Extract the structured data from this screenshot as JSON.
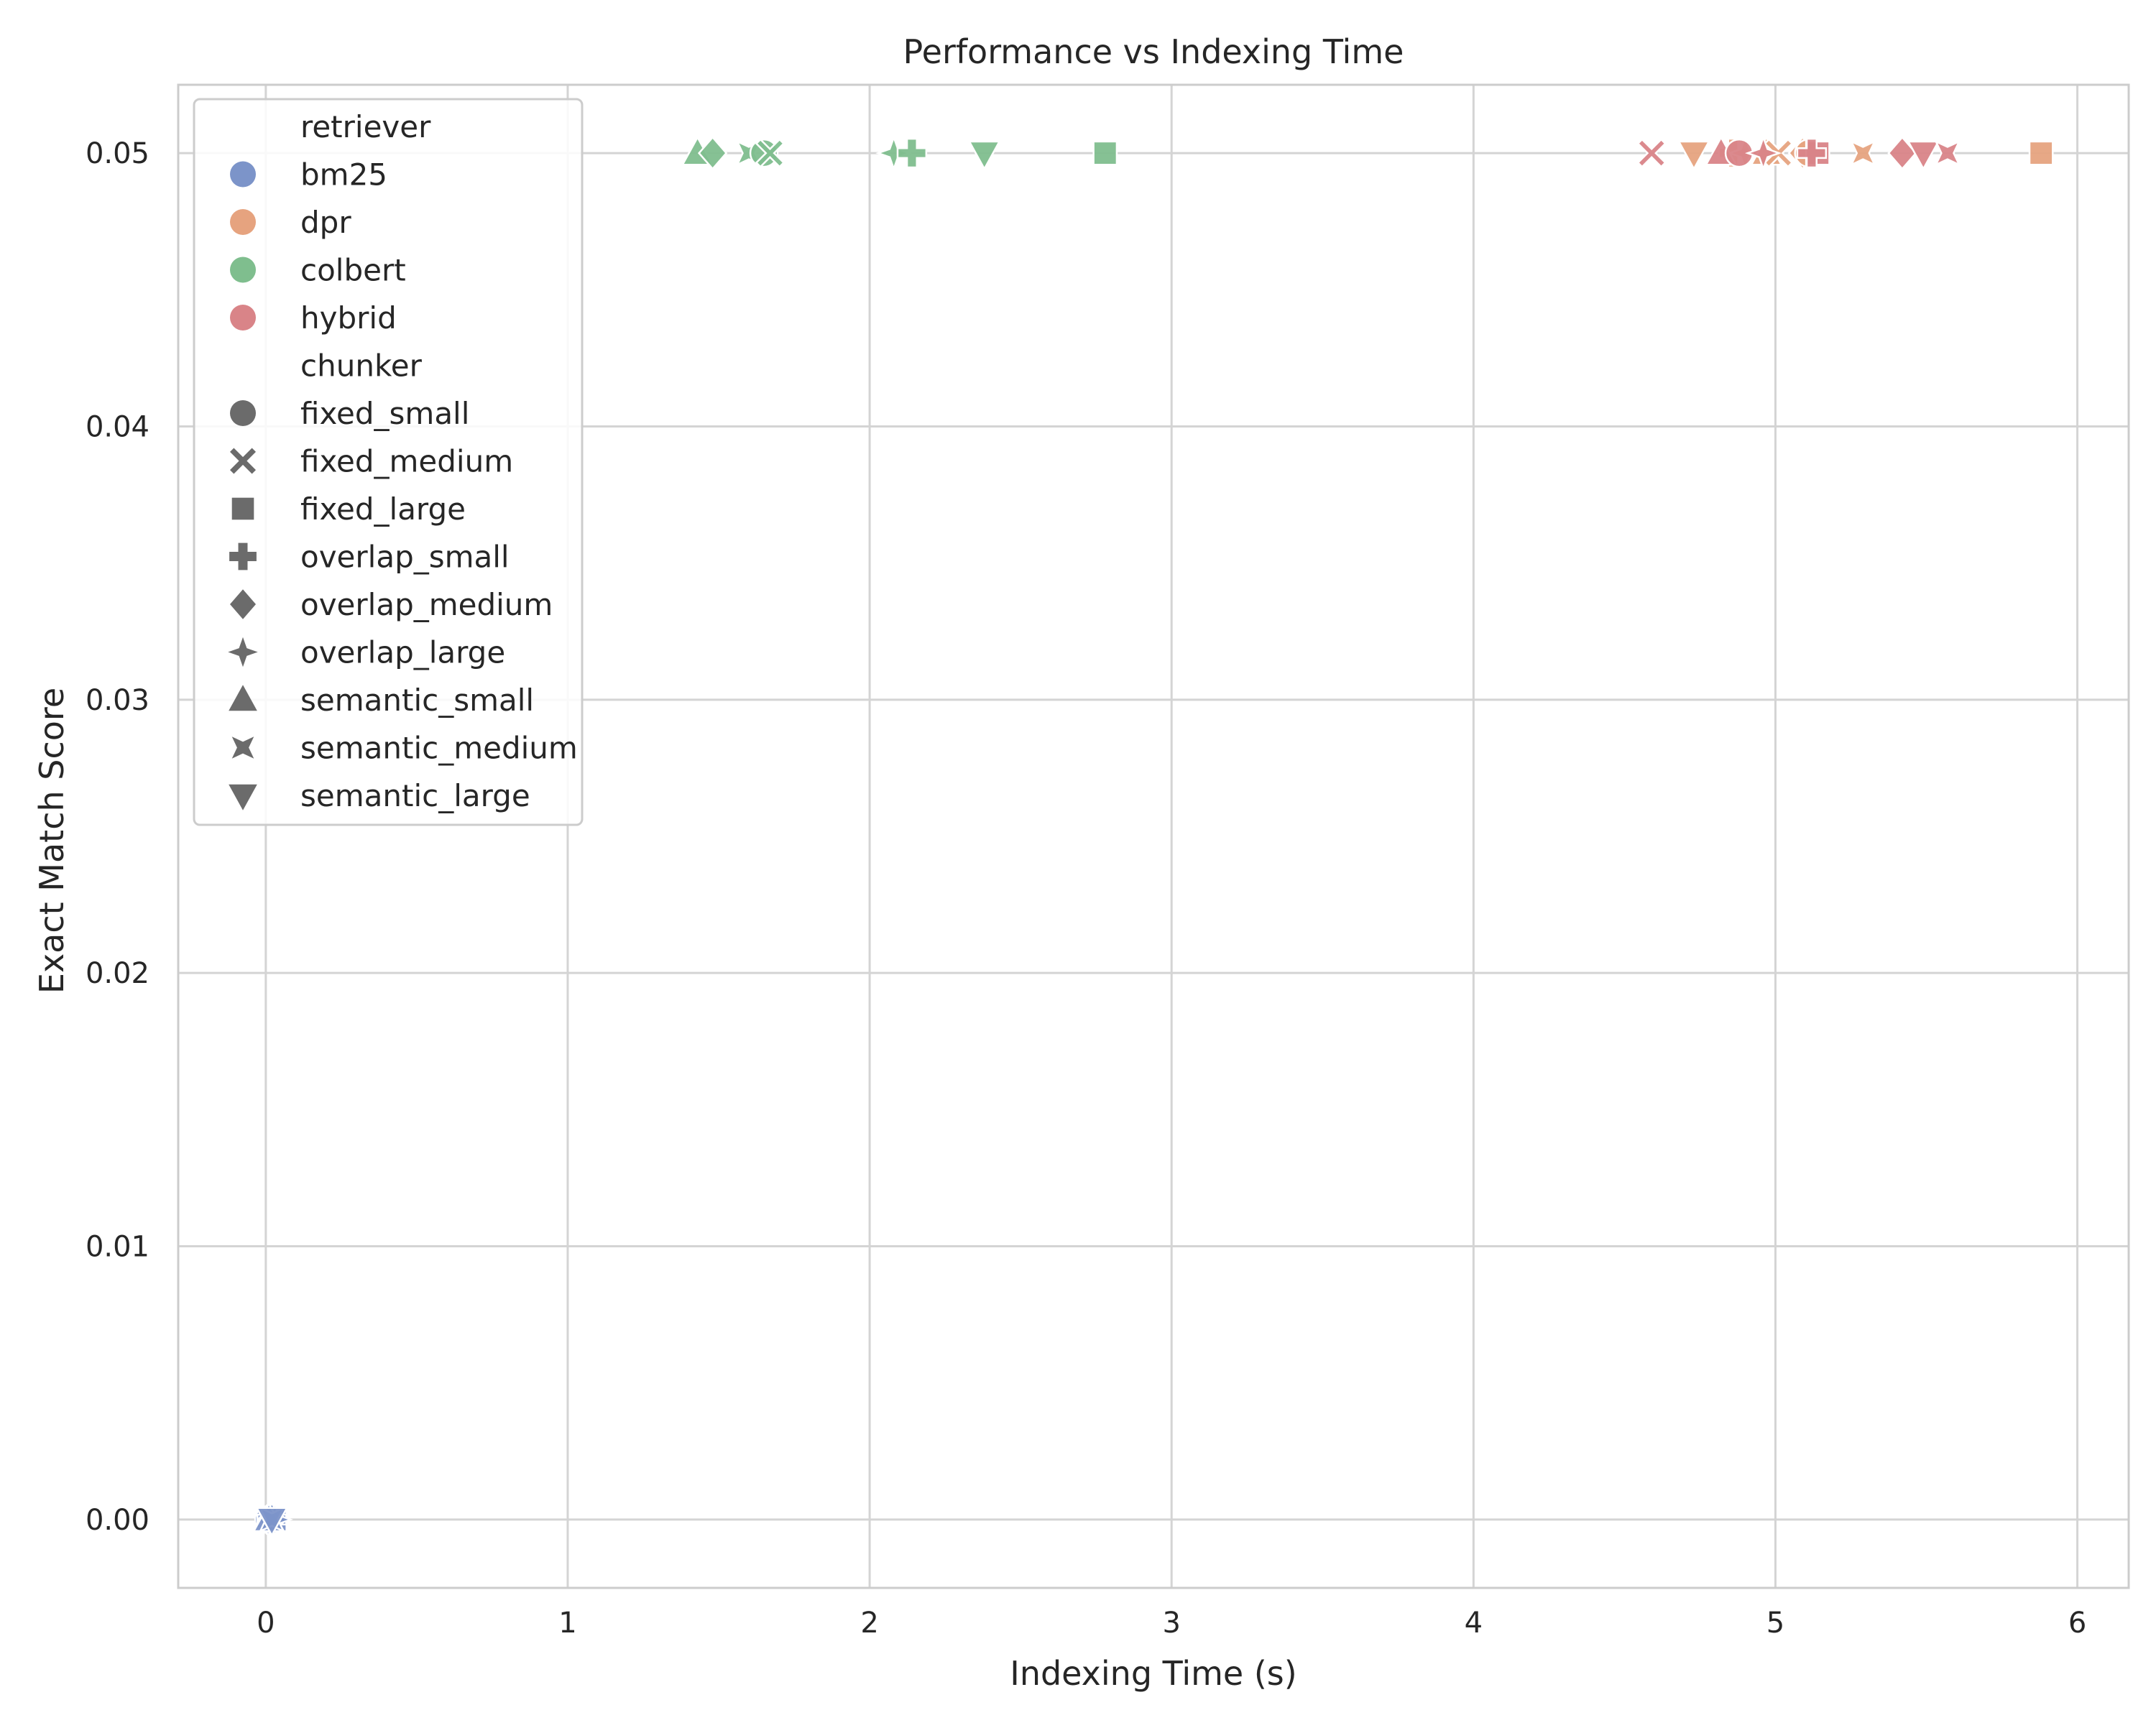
{
  "chart_data": {
    "type": "scatter",
    "title": "Performance vs Indexing Time",
    "xlabel": "Indexing Time (s)",
    "ylabel": "Exact Match Score",
    "xlim": [
      -0.29,
      6.17
    ],
    "ylim": [
      -0.0025,
      0.0525
    ],
    "xticks": [
      0,
      1,
      2,
      3,
      4,
      5,
      6
    ],
    "xtick_labels": [
      "0",
      "1",
      "2",
      "3",
      "4",
      "5",
      "6"
    ],
    "yticks": [
      0.0,
      0.01,
      0.02,
      0.03,
      0.04,
      0.05
    ],
    "ytick_labels": [
      "0.00",
      "0.01",
      "0.02",
      "0.03",
      "0.04",
      "0.05"
    ],
    "grid": true,
    "legend": {
      "placement": "top-left",
      "hue_title": "retriever",
      "style_title": "chunker"
    },
    "series": [
      {
        "name": "bm25",
        "color": "#7c94c9"
      },
      {
        "name": "dpr",
        "color": "#e6a37f"
      },
      {
        "name": "colbert",
        "color": "#7fbe8e"
      },
      {
        "name": "hybrid",
        "color": "#d98488"
      }
    ],
    "markers": [
      {
        "name": "fixed_small",
        "shape": "circle"
      },
      {
        "name": "fixed_medium",
        "shape": "x"
      },
      {
        "name": "fixed_large",
        "shape": "square"
      },
      {
        "name": "overlap_small",
        "shape": "plus"
      },
      {
        "name": "overlap_medium",
        "shape": "diamond"
      },
      {
        "name": "overlap_large",
        "shape": "star4"
      },
      {
        "name": "semantic_small",
        "shape": "triangle-up"
      },
      {
        "name": "semantic_medium",
        "shape": "pinched-square"
      },
      {
        "name": "semantic_large",
        "shape": "triangle-down"
      }
    ],
    "points": [
      {
        "retriever": "bm25",
        "chunker": "fixed_small",
        "x": 0.01,
        "y": 0.0
      },
      {
        "retriever": "bm25",
        "chunker": "fixed_medium",
        "x": 0.02,
        "y": 0.0
      },
      {
        "retriever": "bm25",
        "chunker": "fixed_large",
        "x": 0.03,
        "y": 0.0
      },
      {
        "retriever": "bm25",
        "chunker": "overlap_small",
        "x": 0.02,
        "y": 0.0
      },
      {
        "retriever": "bm25",
        "chunker": "overlap_medium",
        "x": 0.02,
        "y": 0.0
      },
      {
        "retriever": "bm25",
        "chunker": "overlap_large",
        "x": 0.03,
        "y": 0.0
      },
      {
        "retriever": "bm25",
        "chunker": "semantic_small",
        "x": 0.01,
        "y": 0.0
      },
      {
        "retriever": "bm25",
        "chunker": "semantic_medium",
        "x": 0.02,
        "y": 0.0
      },
      {
        "retriever": "bm25",
        "chunker": "semantic_large",
        "x": 0.02,
        "y": 0.0
      },
      {
        "retriever": "colbert",
        "chunker": "semantic_small",
        "x": 1.43,
        "y": 0.05
      },
      {
        "retriever": "colbert",
        "chunker": "overlap_medium",
        "x": 1.48,
        "y": 0.05
      },
      {
        "retriever": "colbert",
        "chunker": "semantic_medium",
        "x": 1.6,
        "y": 0.05
      },
      {
        "retriever": "colbert",
        "chunker": "fixed_small",
        "x": 1.65,
        "y": 0.05
      },
      {
        "retriever": "colbert",
        "chunker": "fixed_medium",
        "x": 1.67,
        "y": 0.05
      },
      {
        "retriever": "colbert",
        "chunker": "overlap_large",
        "x": 2.08,
        "y": 0.05
      },
      {
        "retriever": "colbert",
        "chunker": "overlap_small",
        "x": 2.14,
        "y": 0.05
      },
      {
        "retriever": "colbert",
        "chunker": "semantic_large",
        "x": 2.38,
        "y": 0.05
      },
      {
        "retriever": "colbert",
        "chunker": "fixed_large",
        "x": 2.78,
        "y": 0.05
      },
      {
        "retriever": "dpr",
        "chunker": "semantic_large",
        "x": 4.73,
        "y": 0.05
      },
      {
        "retriever": "dpr",
        "chunker": "overlap_small",
        "x": 4.86,
        "y": 0.05
      },
      {
        "retriever": "dpr",
        "chunker": "overlap_large",
        "x": 4.9,
        "y": 0.05
      },
      {
        "retriever": "dpr",
        "chunker": "semantic_small",
        "x": 4.97,
        "y": 0.05
      },
      {
        "retriever": "dpr",
        "chunker": "fixed_medium",
        "x": 5.01,
        "y": 0.05
      },
      {
        "retriever": "dpr",
        "chunker": "overlap_medium",
        "x": 5.09,
        "y": 0.05
      },
      {
        "retriever": "dpr",
        "chunker": "fixed_small",
        "x": 5.11,
        "y": 0.05
      },
      {
        "retriever": "dpr",
        "chunker": "semantic_medium",
        "x": 5.29,
        "y": 0.05
      },
      {
        "retriever": "dpr",
        "chunker": "fixed_large",
        "x": 5.88,
        "y": 0.05
      },
      {
        "retriever": "hybrid",
        "chunker": "fixed_medium",
        "x": 4.59,
        "y": 0.05
      },
      {
        "retriever": "hybrid",
        "chunker": "semantic_small",
        "x": 4.82,
        "y": 0.05
      },
      {
        "retriever": "hybrid",
        "chunker": "fixed_small",
        "x": 4.88,
        "y": 0.05
      },
      {
        "retriever": "hybrid",
        "chunker": "overlap_large",
        "x": 4.96,
        "y": 0.05
      },
      {
        "retriever": "hybrid",
        "chunker": "fixed_large",
        "x": 5.14,
        "y": 0.05
      },
      {
        "retriever": "hybrid",
        "chunker": "overlap_small",
        "x": 5.12,
        "y": 0.05
      },
      {
        "retriever": "hybrid",
        "chunker": "overlap_medium",
        "x": 5.42,
        "y": 0.05
      },
      {
        "retriever": "hybrid",
        "chunker": "semantic_large",
        "x": 5.49,
        "y": 0.05
      },
      {
        "retriever": "hybrid",
        "chunker": "semantic_medium",
        "x": 5.57,
        "y": 0.05
      }
    ]
  }
}
